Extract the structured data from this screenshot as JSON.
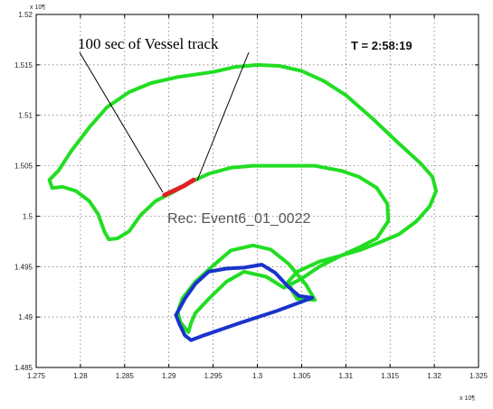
{
  "chart_data": {
    "type": "line",
    "x_multiplier_label": "x 10¶",
    "y_multiplier_label": "x 10¶",
    "xlim": [
      1.275,
      1.325
    ],
    "ylim": [
      1.485,
      1.52
    ],
    "xticks": [
      1.275,
      1.28,
      1.285,
      1.29,
      1.295,
      1.3,
      1.305,
      1.31,
      1.315,
      1.32,
      1.325
    ],
    "yticks": [
      1.485,
      1.49,
      1.495,
      1.5,
      1.505,
      1.51,
      1.515,
      1.52
    ],
    "xtick_labels": [
      "1.275",
      "1.28",
      "1.285",
      "1.29",
      "1.295",
      "1.3",
      "1.305",
      "1.31",
      "1.315",
      "1.32",
      "1.325"
    ],
    "ytick_labels": [
      "1.485",
      "1.49",
      "1.495",
      "1.5",
      "1.505",
      "1.51",
      "1.515",
      "1.52"
    ],
    "grid": true,
    "series": [
      {
        "color": "#22dd22",
        "points": [
          [
            1.2765,
            1.5036
          ],
          [
            1.2775,
            1.5045
          ],
          [
            1.279,
            1.5065
          ],
          [
            1.281,
            1.5088
          ],
          [
            1.283,
            1.5108
          ],
          [
            1.2855,
            1.5123
          ],
          [
            1.288,
            1.5132
          ],
          [
            1.291,
            1.5138
          ],
          [
            1.295,
            1.5143
          ],
          [
            1.2975,
            1.5148
          ],
          [
            1.3,
            1.515
          ],
          [
            1.3025,
            1.5149
          ],
          [
            1.305,
            1.5144
          ],
          [
            1.3075,
            1.5134
          ],
          [
            1.31,
            1.512
          ],
          [
            1.313,
            1.5097
          ],
          [
            1.316,
            1.5072
          ],
          [
            1.3185,
            1.5052
          ],
          [
            1.3198,
            1.5039
          ],
          [
            1.3202,
            1.5025
          ],
          [
            1.3195,
            1.501
          ],
          [
            1.318,
            1.4995
          ],
          [
            1.316,
            1.4982
          ],
          [
            1.3138,
            1.4974
          ],
          [
            1.3118,
            1.4967
          ],
          [
            1.3095,
            1.4961
          ],
          [
            1.307,
            1.4955
          ],
          [
            1.3045,
            1.4945
          ],
          [
            1.3035,
            1.4935
          ],
          [
            1.304,
            1.4925
          ],
          [
            1.3045,
            1.4918
          ],
          [
            1.3065,
            1.4917
          ],
          [
            1.3055,
            1.4932
          ],
          [
            1.3035,
            1.4953
          ],
          [
            1.3015,
            1.4967
          ],
          [
            1.2995,
            1.4971
          ],
          [
            1.297,
            1.4966
          ],
          [
            1.295,
            1.4951
          ],
          [
            1.293,
            1.4935
          ],
          [
            1.2915,
            1.4918
          ],
          [
            1.291,
            1.4905
          ],
          [
            1.2913,
            1.4895
          ],
          [
            1.2922,
            1.4885
          ],
          [
            1.2925,
            1.4894
          ],
          [
            1.293,
            1.4904
          ],
          [
            1.2945,
            1.4918
          ],
          [
            1.2965,
            1.4935
          ],
          [
            1.2985,
            1.4945
          ],
          [
            1.301,
            1.494
          ],
          [
            1.303,
            1.4929
          ],
          [
            1.305,
            1.4938
          ],
          [
            1.307,
            1.495
          ],
          [
            1.3095,
            1.4961
          ],
          [
            1.3115,
            1.4969
          ],
          [
            1.3135,
            1.4978
          ],
          [
            1.3148,
            1.4995
          ],
          [
            1.3147,
            1.5012
          ],
          [
            1.3135,
            1.5028
          ],
          [
            1.3115,
            1.5039
          ],
          [
            1.3095,
            1.5045
          ],
          [
            1.3065,
            1.505
          ],
          [
            1.303,
            1.505
          ],
          [
            1.2995,
            1.505
          ],
          [
            1.297,
            1.5048
          ],
          [
            1.2945,
            1.5042
          ],
          [
            1.2925,
            1.5034
          ],
          [
            1.2905,
            1.5024
          ],
          [
            1.2885,
            1.5015
          ],
          [
            1.2868,
            1.5001
          ],
          [
            1.2855,
            1.4985
          ],
          [
            1.2842,
            1.4978
          ],
          [
            1.2832,
            1.4977
          ],
          [
            1.2827,
            1.4985
          ],
          [
            1.282,
            1.5002
          ],
          [
            1.281,
            1.5015
          ],
          [
            1.2795,
            1.5025
          ],
          [
            1.278,
            1.5029
          ],
          [
            1.2768,
            1.5028
          ],
          [
            1.2765,
            1.5036
          ]
        ]
      },
      {
        "color": "#dd2222",
        "points": [
          [
            1.2895,
            1.5021
          ],
          [
            1.2905,
            1.5025
          ],
          [
            1.2917,
            1.503
          ],
          [
            1.2928,
            1.5036
          ]
        ]
      },
      {
        "color": "#1a33cc",
        "points": [
          [
            1.2908,
            1.4902
          ],
          [
            1.2918,
            1.4918
          ],
          [
            1.293,
            1.4933
          ],
          [
            1.2945,
            1.4945
          ],
          [
            1.2965,
            1.4948
          ],
          [
            1.2985,
            1.4949
          ],
          [
            1.3005,
            1.4952
          ],
          [
            1.302,
            1.4944
          ],
          [
            1.3035,
            1.493
          ],
          [
            1.3047,
            1.4921
          ],
          [
            1.3062,
            1.4919
          ],
          [
            1.3022,
            1.4906
          ],
          [
            1.298,
            1.4894
          ],
          [
            1.294,
            1.4882
          ],
          [
            1.2925,
            1.4877
          ],
          [
            1.2918,
            1.4882
          ],
          [
            1.2912,
            1.4893
          ],
          [
            1.2908,
            1.4902
          ]
        ]
      }
    ],
    "annotation_text": "100 sec of Vessel track",
    "timestamp_text": "T = 2:58:19",
    "record_text": "Rec: Event6_01_0022"
  }
}
